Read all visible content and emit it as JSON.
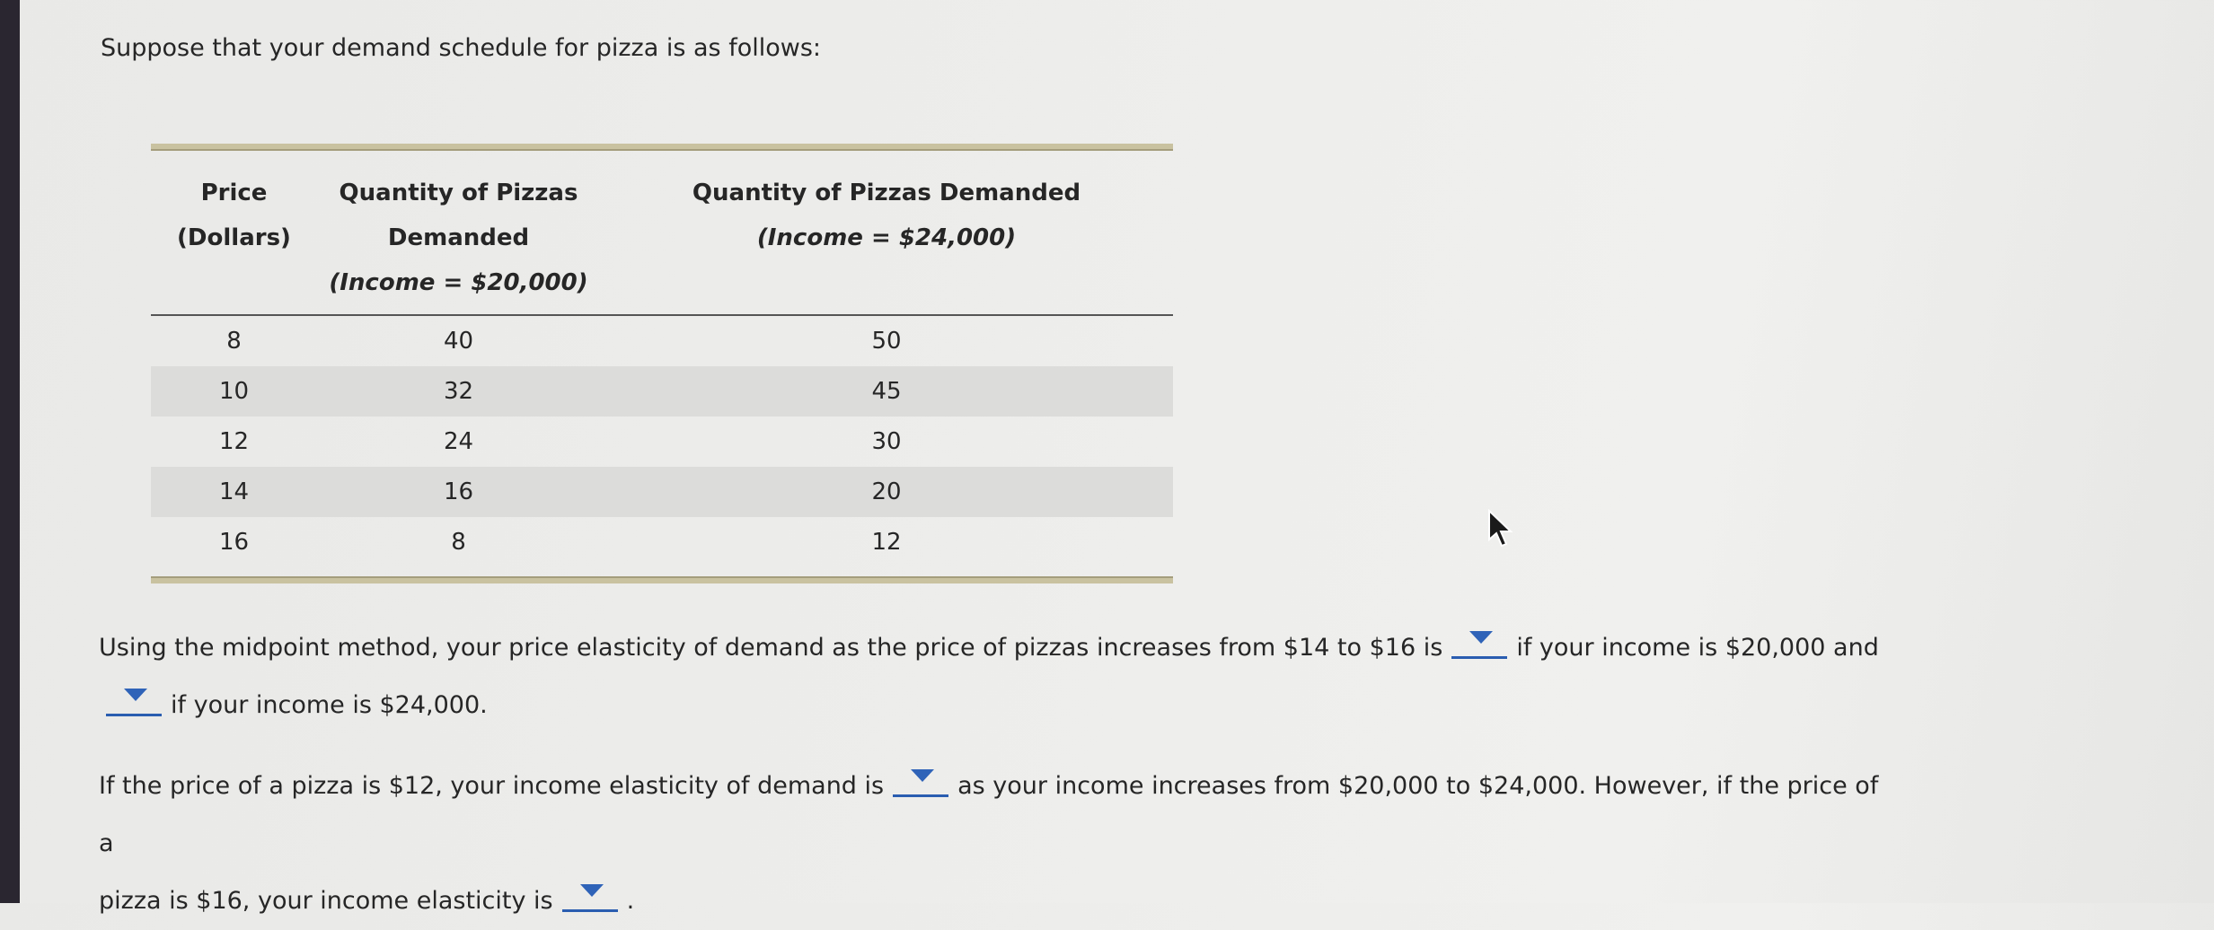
{
  "intro_text": "Suppose that your demand schedule for pizza is as follows:",
  "table": {
    "headers": {
      "price_line1": "Price",
      "price_line2": "(Dollars)",
      "q1_line1": "Quantity of Pizzas Demanded",
      "q1_line2": "(Income = $20,000)",
      "q2_line1": "Quantity of Pizzas Demanded",
      "q2_line2": "(Income = $24,000)"
    },
    "rows": [
      {
        "price": "8",
        "q1": "40",
        "q2": "50"
      },
      {
        "price": "10",
        "q1": "32",
        "q2": "45"
      },
      {
        "price": "12",
        "q1": "24",
        "q2": "30"
      },
      {
        "price": "14",
        "q1": "16",
        "q2": "20"
      },
      {
        "price": "16",
        "q1": "8",
        "q2": "12"
      }
    ]
  },
  "question1": {
    "part_a": "Using the midpoint method, your price elasticity of demand as the price of pizzas increases from $14 to $16 is",
    "part_b": "if your income is $20,000 and",
    "part_c": "if your income is $24,000."
  },
  "question2": {
    "part_a": "If the price of a pizza is $12, your income elasticity of demand is",
    "part_b": "as your income increases from $20,000 to $24,000. However, if the price of a",
    "part_c": "pizza is $16, your income elasticity is",
    "part_d": "."
  },
  "colors": {
    "dropdown_accent": "#2f63b8",
    "table_rule": "#c9c2a0",
    "row_shade": "#dcdcda"
  }
}
